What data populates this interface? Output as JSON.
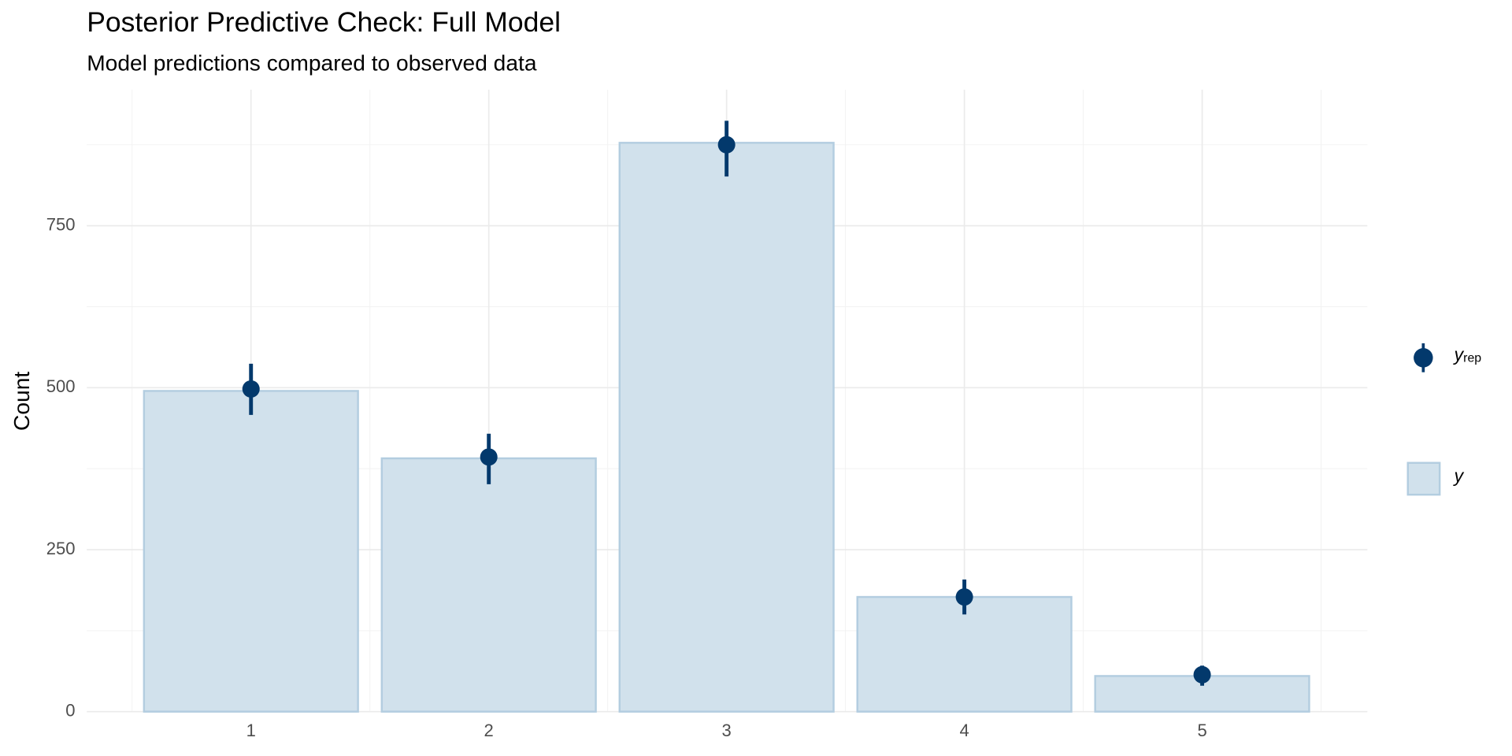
{
  "chart_data": {
    "type": "bar",
    "title": "Posterior Predictive Check: Full Model",
    "subtitle": "Model predictions compared to observed data",
    "y_label": "Count",
    "categories": [
      "1",
      "2",
      "3",
      "4",
      "5"
    ],
    "series": [
      {
        "name": "y",
        "type": "bar",
        "color": "#d1e1ec",
        "edge_color": "#b3cde0",
        "values": [
          495,
          391,
          878,
          177,
          55
        ]
      },
      {
        "name": "y",
        "name_subscript": "rep",
        "type": "pointrange",
        "color": "#03396c",
        "values": [
          498,
          393,
          875,
          177,
          57
        ],
        "lower": [
          458,
          351,
          826,
          150,
          40
        ],
        "upper": [
          537,
          429,
          912,
          204,
          71
        ]
      }
    ],
    "ylim": [
      0,
      960
    ],
    "yticks": [
      0,
      250,
      500,
      750
    ],
    "yminor": [
      125,
      375,
      625,
      875
    ],
    "grid": true
  }
}
